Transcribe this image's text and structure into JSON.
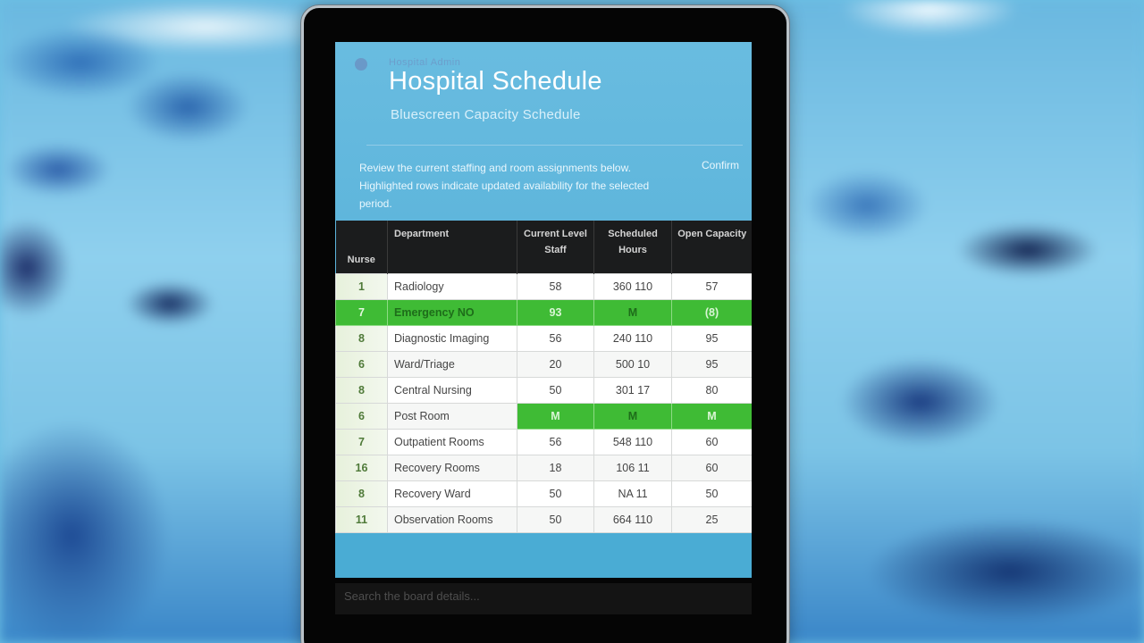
{
  "app": {
    "tag": "Hospital Admin",
    "title": "Hospital Schedule",
    "subtitle": "Bluescreen Capacity Schedule",
    "description": "Review the current staffing and room assignments below. Highlighted rows indicate updated availability for the selected period.",
    "description_link": "Confirm"
  },
  "table": {
    "headers": [
      "Nurse",
      "Department",
      "Current Level Staff",
      "Scheduled Hours",
      "Open Capacity"
    ],
    "rows": [
      {
        "idx": "1",
        "name": "Radiology",
        "col3": "58",
        "col4": "360 110",
        "col5": "57",
        "highlight": []
      },
      {
        "idx": "7",
        "name": "Emergency NO",
        "col3": "93",
        "col4": "M",
        "col5": "(8)",
        "highlight": [
          "idx",
          "name",
          "col3",
          "col4",
          "col5"
        ]
      },
      {
        "idx": "8",
        "name": "Diagnostic Imaging",
        "col3": "56",
        "col4": "240 110",
        "col5": "95",
        "highlight": []
      },
      {
        "idx": "6",
        "name": "Ward/Triage",
        "col3": "20",
        "col4": "500 10",
        "col5": "95",
        "highlight": []
      },
      {
        "idx": "8",
        "name": "Central Nursing",
        "col3": "50",
        "col4": "301 17",
        "col5": "80",
        "highlight": []
      },
      {
        "idx": "6",
        "name": "Post Room",
        "col3": "M",
        "col4": "M",
        "col5": "M",
        "highlight": [
          "col3",
          "col4",
          "col5"
        ]
      },
      {
        "idx": "7",
        "name": "Outpatient Rooms",
        "col3": "56",
        "col4": "548 110",
        "col5": "60",
        "highlight": []
      },
      {
        "idx": "16",
        "name": "Recovery Rooms",
        "col3": "18",
        "col4": "106 11",
        "col5": "60",
        "highlight": []
      },
      {
        "idx": "8",
        "name": "Recovery Ward",
        "col3": "50",
        "col4": "NA 11",
        "col5": "50",
        "highlight": []
      },
      {
        "idx": "11",
        "name": "Observation Rooms",
        "col3": "50",
        "col4": "664 110",
        "col5": "25",
        "highlight": []
      }
    ]
  },
  "search": {
    "placeholder": "Search the board details..."
  },
  "colors": {
    "screen_blue": "#5db5dc",
    "highlight_green": "#3fbb35",
    "header_dark": "#1b1c1d",
    "tablet_frame": "#050505"
  }
}
